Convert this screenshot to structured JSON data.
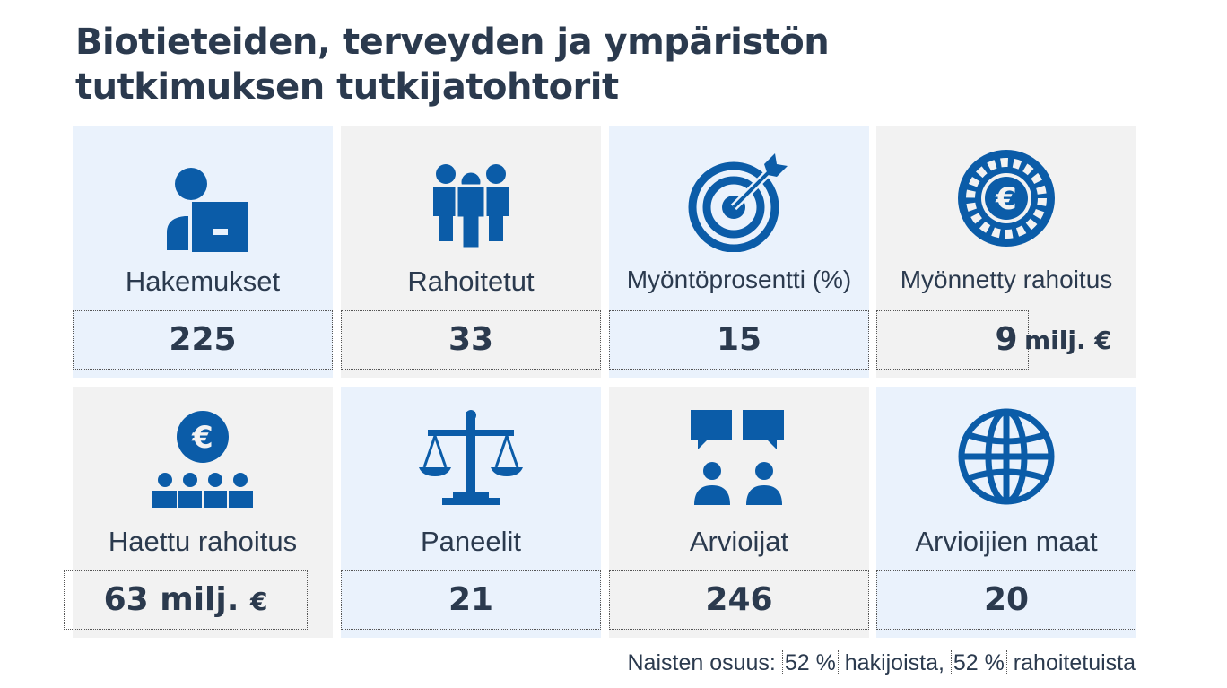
{
  "title_line1": "Biotieteiden, terveyden ja ympäristön",
  "title_line2": "tutkimuksen tutkijatohtorit",
  "colors": {
    "icon": "#0b5ca8",
    "text": "#2b3a4e",
    "tile_light": "#eaf2fc",
    "tile_grey": "#f2f2f2"
  },
  "stats": [
    {
      "icon": "applicant-icon",
      "label": "Hakemukset",
      "value": "225",
      "unit": ""
    },
    {
      "icon": "people-group-icon",
      "label": "Rahoitetut",
      "value": "33",
      "unit": ""
    },
    {
      "icon": "target-icon",
      "label": "Myöntöprosentti (%)",
      "value": "15",
      "unit": ""
    },
    {
      "icon": "euro-coin-icon",
      "label": "Myönnetty rahoitus",
      "value": "9",
      "unit": "milj. €"
    },
    {
      "icon": "euro-people-icon",
      "label": "Haettu rahoitus",
      "value": "63 milj.",
      "unit": "€"
    },
    {
      "icon": "scales-icon",
      "label": "Paneelit",
      "value": "21",
      "unit": ""
    },
    {
      "icon": "speech-people-icon",
      "label": "Arvioijat",
      "value": "246",
      "unit": ""
    },
    {
      "icon": "globe-icon",
      "label": "Arvioijien maat",
      "value": "20",
      "unit": ""
    }
  ],
  "footnote": {
    "prefix": "Naisten osuus: ",
    "pct1": "52 %",
    "mid": " hakijoista, ",
    "pct2": "52 %",
    "suffix": " rahoitetuista"
  }
}
